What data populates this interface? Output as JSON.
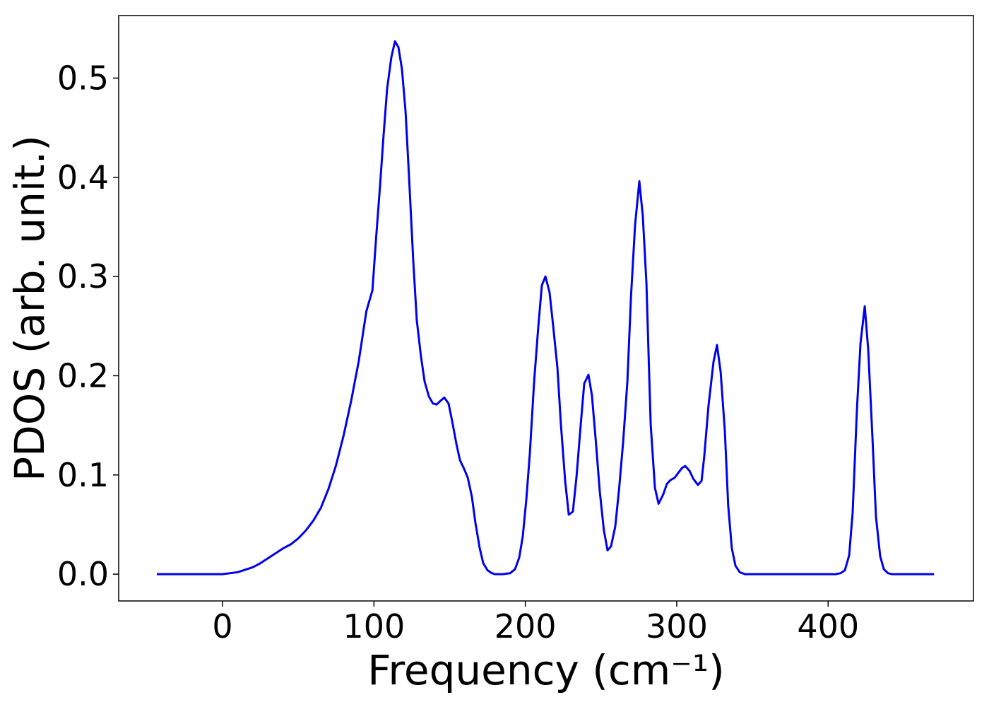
{
  "chart_data": {
    "type": "line",
    "xlabel": "Frequency (cm⁻¹)",
    "ylabel": "PDOS (arb. unit.)",
    "xlim": [
      -68.6,
      496
    ],
    "ylim": [
      -0.027,
      0.563
    ],
    "xticks": [
      0,
      100,
      200,
      300,
      400
    ],
    "yticks": [
      {
        "value": 0,
        "label": "0.0"
      },
      0.1,
      0.2,
      0.3,
      0.4,
      0.5
    ],
    "grid": false,
    "series": [
      {
        "color": "#0000ee",
        "x": [
          -43.4,
          0,
          10,
          20,
          25,
          30,
          35,
          40,
          45,
          50,
          55,
          60,
          65,
          70,
          75,
          80,
          85,
          90,
          95,
          99,
          101.3,
          104.1,
          106.4,
          108.7,
          111.5,
          113.9,
          116.2,
          118.5,
          120.9,
          123.2,
          126,
          128.3,
          131.1,
          133.5,
          136.3,
          139,
          141.4,
          144.2,
          146.5,
          149.3,
          151.7,
          154.5,
          156.8,
          159.6,
          162,
          164.7,
          167.1,
          169.9,
          172.2,
          175,
          177.3,
          179.7,
          185,
          190,
          193.2,
          196,
          198.3,
          200.7,
          203,
          205.8,
          208.6,
          210.9,
          213.3,
          216,
          218.4,
          221.2,
          223.5,
          226.3,
          228.7,
          231.4,
          233.8,
          236.6,
          238.9,
          241.7,
          244,
          246.4,
          249.2,
          251.9,
          254.3,
          256.6,
          259.4,
          262,
          264.6,
          267.4,
          269.8,
          272.5,
          275.3,
          277.6,
          280,
          282.8,
          285.6,
          288,
          291,
          293.5,
          296,
          298.5,
          301,
          303.5,
          305.6,
          308.5,
          311,
          314,
          316.4,
          318.2,
          321,
          324.3,
          326.6,
          329,
          331.8,
          334,
          336.4,
          338.8,
          341.6,
          345,
          405,
          408.3,
          411.1,
          413.9,
          416.2,
          419,
          421.4,
          424.2,
          426.5,
          429.3,
          431.6,
          434.4,
          436.8,
          439.5,
          442,
          470
        ],
        "values": [
          0,
          0,
          0.002,
          0.007,
          0.011,
          0.016,
          0.021,
          0.026,
          0.03,
          0.036,
          0.044,
          0.054,
          0.067,
          0.086,
          0.11,
          0.14,
          0.175,
          0.215,
          0.265,
          0.286,
          0.336,
          0.393,
          0.443,
          0.489,
          0.521,
          0.537,
          0.531,
          0.509,
          0.466,
          0.4,
          0.315,
          0.256,
          0.219,
          0.194,
          0.179,
          0.172,
          0.171,
          0.175,
          0.178,
          0.172,
          0.154,
          0.131,
          0.115,
          0.106,
          0.097,
          0.078,
          0.051,
          0.026,
          0.011,
          0.004,
          0.0015,
          0,
          0,
          0.001,
          0.005,
          0.017,
          0.038,
          0.076,
          0.122,
          0.194,
          0.25,
          0.291,
          0.3,
          0.284,
          0.25,
          0.208,
          0.151,
          0.094,
          0.06,
          0.063,
          0.098,
          0.151,
          0.192,
          0.201,
          0.18,
          0.137,
          0.083,
          0.044,
          0.024,
          0.028,
          0.048,
          0.087,
          0.133,
          0.194,
          0.28,
          0.352,
          0.396,
          0.361,
          0.293,
          0.151,
          0.087,
          0.071,
          0.08,
          0.091,
          0.095,
          0.097,
          0.102,
          0.107,
          0.109,
          0.104,
          0.096,
          0.09,
          0.094,
          0.119,
          0.17,
          0.214,
          0.231,
          0.204,
          0.144,
          0.069,
          0.026,
          0.0085,
          0.002,
          0,
          0,
          0.001,
          0.004,
          0.019,
          0.062,
          0.165,
          0.233,
          0.27,
          0.226,
          0.137,
          0.058,
          0.018,
          0.005,
          0.001,
          0,
          0
        ]
      }
    ]
  }
}
